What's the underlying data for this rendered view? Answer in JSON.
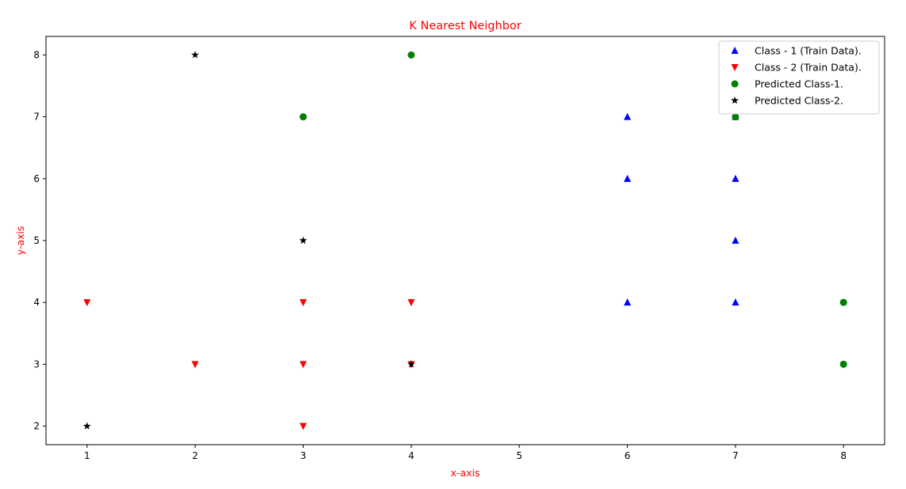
{
  "chart_data": {
    "type": "scatter",
    "title": "K Nearest Neighbor",
    "xlabel": "x-axis",
    "ylabel": "y-axis",
    "label_color": "#ff0000",
    "xlim": [
      0.62,
      8.38
    ],
    "ylim": [
      1.7,
      8.3
    ],
    "xticks": [
      1,
      2,
      3,
      4,
      5,
      6,
      7,
      8
    ],
    "yticks": [
      2,
      3,
      4,
      5,
      6,
      7,
      8
    ],
    "grid": false,
    "legend_position": "top-right",
    "series": [
      {
        "name": "Class - 1 (Train Data).",
        "marker": "triangle-up",
        "color": "#0000ff",
        "points": [
          [
            6,
            4
          ],
          [
            6,
            6
          ],
          [
            6,
            7
          ],
          [
            7,
            4
          ],
          [
            7,
            5
          ],
          [
            7,
            6
          ],
          [
            7,
            7
          ]
        ]
      },
      {
        "name": "Class - 2 (Train Data).",
        "marker": "triangle-down",
        "color": "#ff0000",
        "points": [
          [
            1,
            4
          ],
          [
            2,
            3
          ],
          [
            3,
            2
          ],
          [
            3,
            3
          ],
          [
            3,
            4
          ],
          [
            4,
            3
          ],
          [
            4,
            4
          ]
        ]
      },
      {
        "name": "Predicted Class-1.",
        "marker": "circle",
        "color": "#008000",
        "points": [
          [
            3,
            7
          ],
          [
            4,
            8
          ],
          [
            7,
            7
          ],
          [
            8,
            3
          ],
          [
            8,
            4
          ]
        ]
      },
      {
        "name": "Predicted Class-2.",
        "marker": "star",
        "color": "#000000",
        "points": [
          [
            1,
            2
          ],
          [
            2,
            8
          ],
          [
            3,
            5
          ],
          [
            4,
            3
          ]
        ]
      }
    ]
  }
}
